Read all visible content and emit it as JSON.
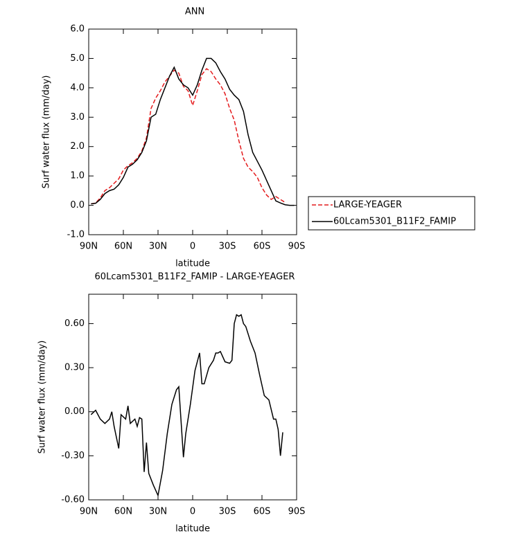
{
  "chart_data": [
    {
      "type": "line",
      "title": "ANN",
      "xlabel": "latitude",
      "ylabel": "Surf water flux (mm/day)",
      "x": [
        88,
        84,
        80,
        76,
        72,
        68,
        64,
        60,
        56,
        52,
        48,
        44,
        40,
        36,
        32,
        28,
        24,
        20,
        16,
        12,
        8,
        4,
        0,
        -4,
        -8,
        -12,
        -16,
        -20,
        -24,
        -28,
        -32,
        -36,
        -40,
        -44,
        -48,
        -52,
        -56,
        -60,
        -64,
        -68,
        -72,
        -76,
        -80,
        -84,
        -88
      ],
      "xlim": [
        90,
        -90
      ],
      "xticks": [
        {
          "value": 90,
          "label": "90N"
        },
        {
          "value": 60,
          "label": "60N"
        },
        {
          "value": 30,
          "label": "30N"
        },
        0,
        {
          "value": -30,
          "label": "30S"
        },
        {
          "value": -60,
          "label": "60S"
        },
        {
          "value": -90,
          "label": "90S"
        }
      ],
      "ylim": [
        -1,
        6
      ],
      "yticks": [
        {
          "value": -1,
          "label": "-1.0"
        },
        {
          "value": 0,
          "label": "0.0"
        },
        {
          "value": 1,
          "label": "1.0"
        },
        {
          "value": 2,
          "label": "2.0"
        },
        {
          "value": 3,
          "label": "3.0"
        },
        {
          "value": 4,
          "label": "4.0"
        },
        {
          "value": 5,
          "label": "5.0"
        },
        {
          "value": 6,
          "label": "6.0"
        }
      ],
      "legend": "outside-right",
      "series": [
        {
          "name": "LARGE-YEAGER",
          "color": "#e41a1c",
          "linestyle": "dashed",
          "values": [
            0.05,
            0.08,
            0.25,
            0.5,
            0.6,
            0.75,
            0.9,
            1.2,
            1.35,
            1.45,
            1.6,
            1.85,
            2.3,
            3.3,
            3.65,
            3.9,
            4.2,
            4.4,
            4.6,
            4.5,
            4.05,
            3.9,
            3.4,
            3.9,
            4.45,
            4.65,
            4.55,
            4.3,
            4.1,
            3.8,
            3.3,
            2.9,
            2.2,
            1.6,
            1.3,
            1.15,
            0.95,
            0.6,
            0.35,
            0.2,
            0.3,
            0.2,
            0.1,
            null,
            null
          ]
        },
        {
          "name": "60Lcam5301_B11F2_FAMIP",
          "color": "#000000",
          "linestyle": "solid",
          "values": [
            0.05,
            0.07,
            0.2,
            0.4,
            0.5,
            0.55,
            0.7,
            0.95,
            1.3,
            1.4,
            1.55,
            1.8,
            2.2,
            3.0,
            3.1,
            3.6,
            4.0,
            4.4,
            4.7,
            4.3,
            4.1,
            4.0,
            3.75,
            4.1,
            4.6,
            5.0,
            5.0,
            4.85,
            4.55,
            4.3,
            3.95,
            3.75,
            3.6,
            3.2,
            2.4,
            1.8,
            1.5,
            1.2,
            0.85,
            0.5,
            0.15,
            0.08,
            0.02,
            0.0,
            0.0
          ]
        }
      ]
    },
    {
      "type": "line",
      "title": "60Lcam5301_B11F2_FAMIP - LARGE-YEAGER",
      "xlabel": "latitude",
      "ylabel": "Surf water flux (mm/day)",
      "x": [
        88,
        84,
        80,
        76,
        72,
        70,
        68,
        64,
        62,
        58,
        56,
        54,
        50,
        48,
        46,
        44,
        42,
        40,
        38,
        34,
        30,
        26,
        22,
        18,
        14,
        12,
        8,
        6,
        2,
        -2,
        -6,
        -8,
        -10,
        -14,
        -18,
        -20,
        -22,
        -24,
        -28,
        -32,
        -34,
        -36,
        -38,
        -40,
        -42,
        -44,
        -46,
        -50,
        -54,
        -58,
        -62,
        -66,
        -70,
        -72,
        -74,
        -76,
        -78
      ],
      "xlim": [
        90,
        -90
      ],
      "xticks": [
        {
          "value": 90,
          "label": "90N"
        },
        {
          "value": 60,
          "label": "60N"
        },
        {
          "value": 30,
          "label": "30N"
        },
        0,
        {
          "value": -30,
          "label": "30S"
        },
        {
          "value": -60,
          "label": "60S"
        },
        {
          "value": -90,
          "label": "90S"
        }
      ],
      "ylim": [
        -0.6,
        0.8
      ],
      "yticks": [
        {
          "value": -0.6,
          "label": "-0.60"
        },
        {
          "value": -0.3,
          "label": "-0.30"
        },
        {
          "value": 0,
          "label": "0.00"
        },
        {
          "value": 0.3,
          "label": "0.30"
        },
        {
          "value": 0.6,
          "label": "0.60"
        }
      ],
      "series": [
        {
          "color": "#000000",
          "linestyle": "solid",
          "values": [
            -0.02,
            0.01,
            -0.05,
            -0.08,
            -0.05,
            0.0,
            -0.1,
            -0.25,
            -0.02,
            -0.05,
            0.04,
            -0.08,
            -0.05,
            -0.1,
            -0.04,
            -0.05,
            -0.41,
            -0.21,
            -0.42,
            -0.5,
            -0.57,
            -0.4,
            -0.15,
            0.05,
            0.15,
            0.17,
            -0.31,
            -0.15,
            0.05,
            0.28,
            0.4,
            0.19,
            0.19,
            0.3,
            0.35,
            0.4,
            0.4,
            0.41,
            0.34,
            0.33,
            0.35,
            0.6,
            0.66,
            0.65,
            0.66,
            0.6,
            0.58,
            0.48,
            0.4,
            0.25,
            0.11,
            0.08,
            -0.05,
            -0.05,
            -0.12,
            -0.3,
            -0.14
          ]
        }
      ]
    }
  ]
}
